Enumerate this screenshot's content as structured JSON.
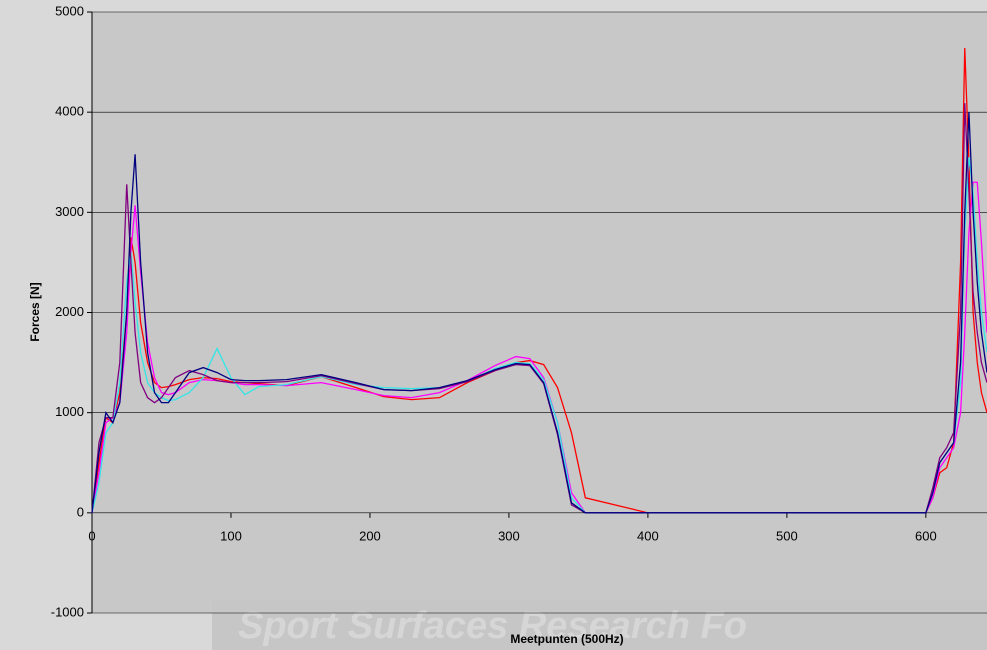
{
  "chart_data": {
    "type": "line",
    "xlabel": "Meetpunten (500Hz)",
    "ylabel": "Forces [N]",
    "watermark": "Sport Surfaces Research Fo",
    "xlim": [
      0,
      644
    ],
    "ylim": [
      -1000,
      5000
    ],
    "xticks": [
      0,
      100,
      200,
      300,
      400,
      500,
      600
    ],
    "yticks": [
      -1000,
      0,
      1000,
      2000,
      3000,
      4000,
      5000
    ],
    "grid": true,
    "x": [
      0,
      5,
      10,
      15,
      20,
      25,
      28,
      31,
      35,
      40,
      45,
      50,
      55,
      60,
      70,
      80,
      90,
      100,
      110,
      120,
      140,
      165,
      190,
      210,
      230,
      250,
      270,
      290,
      305,
      315,
      325,
      335,
      345,
      355,
      400,
      500,
      600,
      605,
      610,
      615,
      620,
      625,
      628,
      631,
      634,
      637,
      640,
      644
    ],
    "series": [
      {
        "color": "#ff0000",
        "values": [
          0,
          500,
          950,
          900,
          1200,
          2000,
          2750,
          2500,
          1900,
          1500,
          1300,
          1250,
          1260,
          1280,
          1330,
          1350,
          1340,
          1310,
          1300,
          1290,
          1270,
          1360,
          1250,
          1160,
          1130,
          1150,
          1300,
          1420,
          1500,
          1520,
          1480,
          1250,
          800,
          150,
          0,
          0,
          0,
          150,
          400,
          450,
          700,
          2500,
          4640,
          3500,
          2000,
          1500,
          1200,
          1000
        ]
      },
      {
        "color": "#ff00ff",
        "values": [
          0,
          400,
          900,
          950,
          1100,
          1800,
          2600,
          3070,
          2400,
          1700,
          1350,
          1200,
          1180,
          1200,
          1300,
          1330,
          1320,
          1300,
          1280,
          1280,
          1270,
          1300,
          1230,
          1170,
          1150,
          1200,
          1320,
          1470,
          1560,
          1540,
          1350,
          900,
          200,
          0,
          0,
          0,
          0,
          150,
          450,
          550,
          650,
          1000,
          1800,
          2800,
          3300,
          3300,
          2700,
          1800
        ]
      },
      {
        "color": "#33e6e6",
        "values": [
          0,
          300,
          800,
          900,
          1300,
          2300,
          2600,
          2100,
          1600,
          1300,
          1200,
          1150,
          1120,
          1130,
          1200,
          1350,
          1640,
          1350,
          1180,
          1260,
          1280,
          1360,
          1280,
          1250,
          1240,
          1250,
          1310,
          1440,
          1500,
          1490,
          1330,
          900,
          150,
          0,
          0,
          0,
          0,
          200,
          500,
          600,
          700,
          1300,
          2800,
          3550,
          3200,
          2500,
          2000,
          1600
        ]
      },
      {
        "color": "#800080",
        "values": [
          0,
          700,
          950,
          950,
          1500,
          3280,
          2500,
          1800,
          1300,
          1150,
          1100,
          1150,
          1250,
          1350,
          1420,
          1380,
          1320,
          1300,
          1300,
          1300,
          1310,
          1370,
          1290,
          1230,
          1220,
          1240,
          1310,
          1420,
          1480,
          1470,
          1290,
          780,
          80,
          0,
          0,
          0,
          0,
          250,
          550,
          650,
          800,
          2000,
          4090,
          3200,
          2200,
          1800,
          1500,
          1300
        ]
      },
      {
        "color": "#000080",
        "values": [
          0,
          600,
          1000,
          900,
          1100,
          2000,
          3000,
          3580,
          2500,
          1600,
          1200,
          1100,
          1100,
          1200,
          1400,
          1450,
          1400,
          1330,
          1320,
          1320,
          1330,
          1380,
          1300,
          1230,
          1220,
          1250,
          1320,
          1430,
          1490,
          1480,
          1300,
          800,
          100,
          0,
          0,
          0,
          0,
          200,
          500,
          600,
          700,
          1500,
          3000,
          4000,
          3000,
          2300,
          1800,
          1400
        ]
      }
    ]
  }
}
